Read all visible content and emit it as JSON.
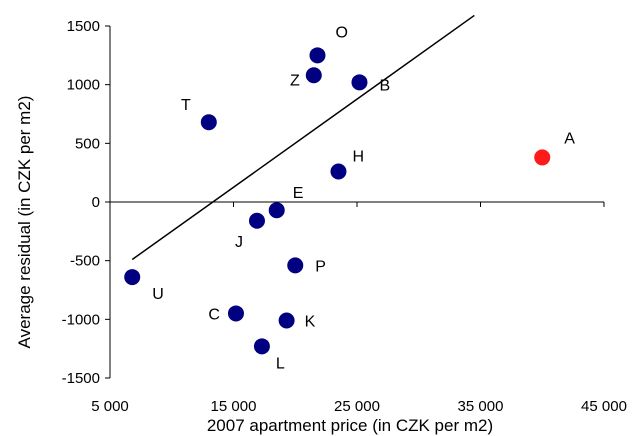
{
  "chart_data": {
    "type": "scatter",
    "xlabel": "2007 apartment price (in CZK per m2)",
    "ylabel": "Average residual (in CZK per m2)",
    "xlim": [
      5000,
      45000
    ],
    "ylim": [
      -1500,
      1500
    ],
    "x_ticks": [
      5000,
      15000,
      25000,
      35000,
      45000
    ],
    "x_tick_labels": [
      "5 000",
      "15 000",
      "25 000",
      "35 000",
      "45 000"
    ],
    "y_ticks": [
      1500,
      1000,
      500,
      0,
      -500,
      -1000,
      -1500
    ],
    "y_tick_labels": [
      "1500",
      "1000",
      "500",
      "0",
      "-500",
      "-1000",
      "-1500"
    ],
    "grid": false,
    "points": [
      {
        "label": "A",
        "x": 40000,
        "y": 380,
        "color": "#ff1a1a"
      },
      {
        "label": "B",
        "x": 25200,
        "y": 1020,
        "color": "#000080"
      },
      {
        "label": "C",
        "x": 15200,
        "y": -950,
        "color": "#000080"
      },
      {
        "label": "E",
        "x": 18500,
        "y": -70,
        "color": "#000080"
      },
      {
        "label": "H",
        "x": 23500,
        "y": 260,
        "color": "#000080"
      },
      {
        "label": "J",
        "x": 16900,
        "y": -160,
        "color": "#000080"
      },
      {
        "label": "K",
        "x": 19300,
        "y": -1010,
        "color": "#000080"
      },
      {
        "label": "L",
        "x": 17300,
        "y": -1230,
        "color": "#000080"
      },
      {
        "label": "O",
        "x": 21800,
        "y": 1250,
        "color": "#000080"
      },
      {
        "label": "P",
        "x": 20000,
        "y": -540,
        "color": "#000080"
      },
      {
        "label": "T",
        "x": 13000,
        "y": 680,
        "color": "#000080"
      },
      {
        "label": "U",
        "x": 6800,
        "y": -640,
        "color": "#000080"
      },
      {
        "label": "Z",
        "x": 21500,
        "y": 1080,
        "color": "#000080"
      }
    ],
    "trendline": {
      "x": [
        6800,
        34500
      ],
      "y": [
        -490,
        1590
      ]
    }
  }
}
